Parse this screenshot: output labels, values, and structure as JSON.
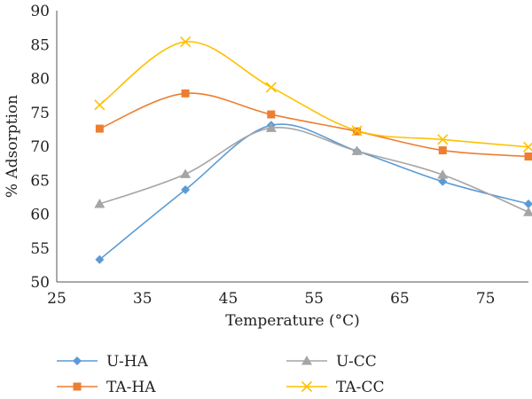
{
  "chart_data": {
    "type": "line",
    "title": "",
    "xlabel": "Temperature (°C)",
    "ylabel": "% Adsorption",
    "xlim": [
      25,
      80
    ],
    "ylim": [
      50,
      90
    ],
    "xticks": [
      25,
      35,
      45,
      55,
      65,
      75
    ],
    "yticks": [
      50,
      55,
      60,
      65,
      70,
      75,
      80,
      85,
      90
    ],
    "grid": false,
    "smooth": true,
    "legend_position": "bottom",
    "series": [
      {
        "name": "U-HA",
        "color": "#5b9bd5",
        "marker": "diamond",
        "x": [
          30,
          40,
          50,
          60,
          70,
          80
        ],
        "y": [
          53.3,
          63.6,
          73.1,
          69.3,
          64.8,
          61.5
        ]
      },
      {
        "name": "U-CC",
        "color": "#a5a5a5",
        "marker": "triangle",
        "x": [
          30,
          40,
          50,
          60,
          70,
          80
        ],
        "y": [
          61.5,
          65.9,
          72.7,
          69.3,
          65.8,
          60.3
        ]
      },
      {
        "name": "TA-HA",
        "color": "#ed7d31",
        "marker": "square",
        "x": [
          30,
          40,
          50,
          60,
          70,
          80
        ],
        "y": [
          72.6,
          77.8,
          74.7,
          72.2,
          69.4,
          68.5
        ]
      },
      {
        "name": "TA-CC",
        "color": "#ffc000",
        "marker": "x",
        "x": [
          30,
          40,
          50,
          60,
          70,
          80
        ],
        "y": [
          76.1,
          85.4,
          78.7,
          72.3,
          71.0,
          69.9
        ]
      }
    ]
  }
}
